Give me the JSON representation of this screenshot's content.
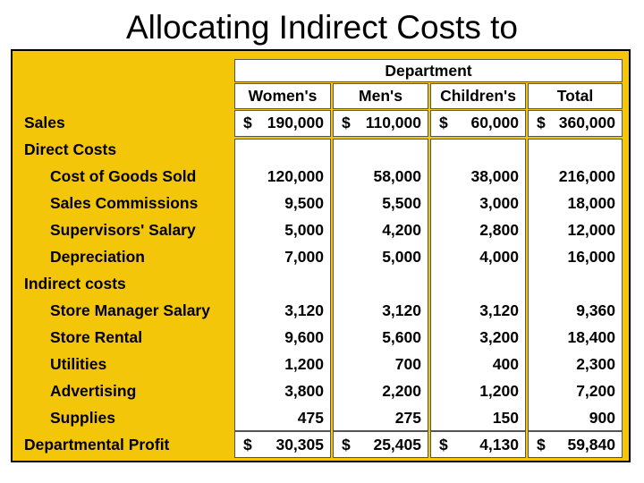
{
  "title": "Allocating Indirect Costs to",
  "table": {
    "group_header": "Department",
    "columns": [
      "Women's",
      "Men's",
      "Children's",
      "Total"
    ],
    "rows": [
      {
        "label": "Sales",
        "indent": false,
        "dollar": true,
        "values": [
          "190,000",
          "110,000",
          "60,000",
          "360,000"
        ]
      },
      {
        "label": "Direct Costs",
        "indent": false,
        "values": null
      },
      {
        "label": "Cost of Goods Sold",
        "indent": true,
        "values": [
          "120,000",
          "58,000",
          "38,000",
          "216,000"
        ]
      },
      {
        "label": "Sales Commissions",
        "indent": true,
        "values": [
          "9,500",
          "5,500",
          "3,000",
          "18,000"
        ]
      },
      {
        "label": "Supervisors' Salary",
        "indent": true,
        "values": [
          "5,000",
          "4,200",
          "2,800",
          "12,000"
        ]
      },
      {
        "label": "Depreciation",
        "indent": true,
        "values": [
          "7,000",
          "5,000",
          "4,000",
          "16,000"
        ]
      },
      {
        "label": "Indirect costs",
        "indent": false,
        "values": null
      },
      {
        "label": "Store Manager Salary",
        "indent": true,
        "values": [
          "3,120",
          "3,120",
          "3,120",
          "9,360"
        ]
      },
      {
        "label": "Store Rental",
        "indent": true,
        "values": [
          "9,600",
          "5,600",
          "3,200",
          "18,400"
        ]
      },
      {
        "label": "Utilities",
        "indent": true,
        "values": [
          "1,200",
          "700",
          "400",
          "2,300"
        ]
      },
      {
        "label": "Advertising",
        "indent": true,
        "values": [
          "3,800",
          "2,200",
          "1,200",
          "7,200"
        ]
      },
      {
        "label": "Supplies",
        "indent": true,
        "values": [
          "475",
          "275",
          "150",
          "900"
        ]
      },
      {
        "label": "Departmental Profit",
        "indent": false,
        "dollar": true,
        "values": [
          "30,305",
          "25,405",
          "4,130",
          "59,840"
        ]
      }
    ],
    "currency_symbol": "$"
  }
}
